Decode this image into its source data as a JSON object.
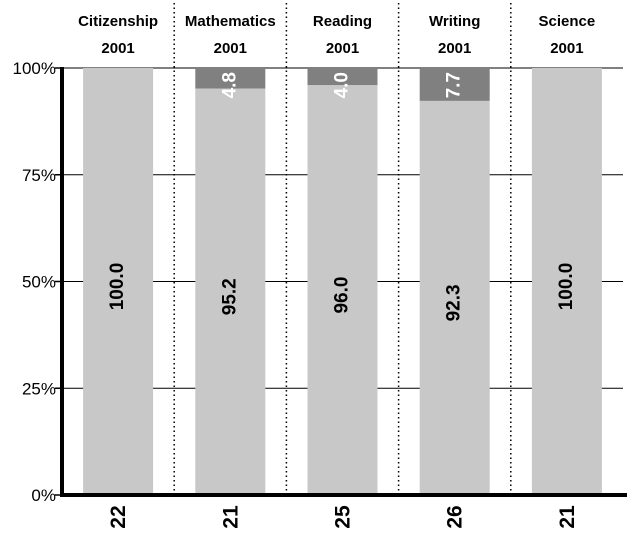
{
  "chart_data": {
    "type": "bar",
    "stacked": true,
    "orientation": "vertical",
    "categories": [
      {
        "subject": "Citizenship",
        "year": "2001",
        "n": "22"
      },
      {
        "subject": "Mathematics",
        "year": "2001",
        "n": "21"
      },
      {
        "subject": "Reading",
        "year": "2001",
        "n": "25"
      },
      {
        "subject": "Writing",
        "year": "2001",
        "n": "26"
      },
      {
        "subject": "Science",
        "year": "2001",
        "n": "21"
      }
    ],
    "series": [
      {
        "color": "#c8c8c8",
        "values": [
          100.0,
          95.2,
          96.0,
          92.3,
          100.0
        ],
        "labels": [
          "100.0",
          "95.2",
          "96.0",
          "92.3",
          "100.0"
        ]
      },
      {
        "color": "#808080",
        "values": [
          0,
          4.8,
          4.0,
          7.7,
          0
        ],
        "labels": [
          "",
          "4.8",
          "4.0",
          "7.7",
          ""
        ]
      }
    ],
    "y_ticks": [
      "0%",
      "25%",
      "50%",
      "75%",
      "100%"
    ],
    "ylim": [
      0,
      100
    ],
    "grid": "horizontal",
    "separators": "dotted"
  }
}
